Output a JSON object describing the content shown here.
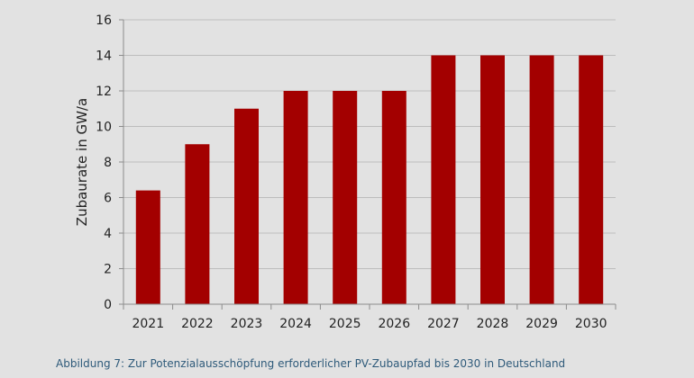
{
  "chart_data": {
    "type": "bar",
    "categories": [
      "2021",
      "2022",
      "2023",
      "2024",
      "2025",
      "2026",
      "2027",
      "2028",
      "2029",
      "2030"
    ],
    "values": [
      6.4,
      9,
      11,
      12,
      12,
      12,
      14,
      14,
      14,
      14
    ],
    "ylabel": "Zubaurate in GW/a",
    "ylim": [
      0,
      16
    ],
    "yticks": [
      "0",
      "2",
      "4",
      "6",
      "8",
      "10",
      "12",
      "14",
      "16"
    ],
    "grid": true,
    "legend": "none",
    "bar_color": "#a30000",
    "grid_color": "#bdbdbd",
    "axis_color": "#8c8c8c"
  },
  "caption": {
    "text": "Abbildung 7: Zur Potenzialausschöpfung erforderlicher PV-Zubaupfad bis 2030 in Deutschland",
    "color": "#2e5a7a"
  }
}
